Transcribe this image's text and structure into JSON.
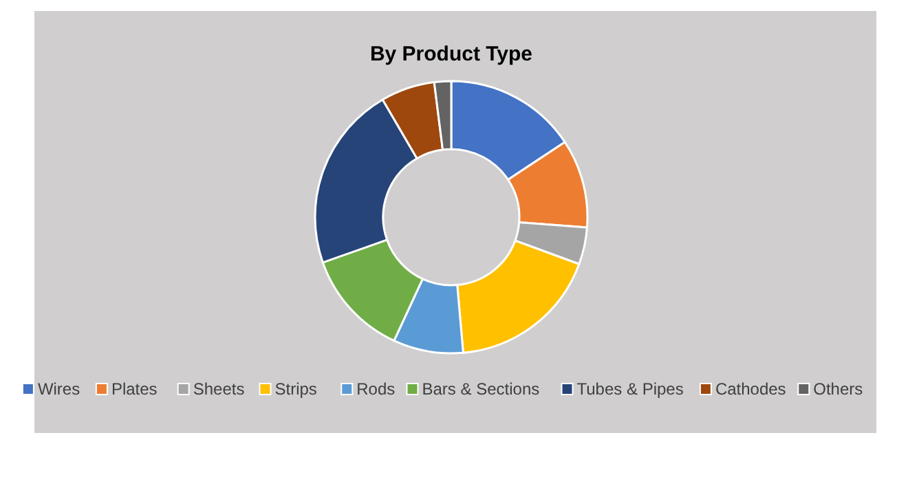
{
  "chart_data": {
    "type": "donut",
    "title": "By Product Type",
    "categories": [
      "Wires",
      "Plates",
      "Sheets",
      "Strips",
      "Rods",
      "Bars & Sections",
      "Tubes & Pipes",
      "Cathodes",
      "Others"
    ],
    "values": [
      15.7,
      10.5,
      4.4,
      18.0,
      8.3,
      12.7,
      22.0,
      6.4,
      2.0
    ],
    "colors": [
      "#4472c4",
      "#ed7d31",
      "#a5a5a5",
      "#ffc000",
      "#5b9bd5",
      "#70ad47",
      "#264478",
      "#9e480e",
      "#636363"
    ],
    "legend": "bottom"
  }
}
